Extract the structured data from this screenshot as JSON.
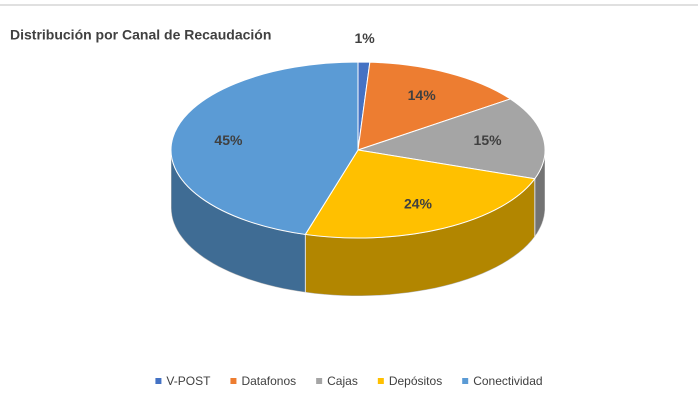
{
  "chart_data": {
    "type": "pie",
    "title": "Distribución por Canal de Recaudación",
    "categories": [
      "V-POST",
      "Datafonos",
      "Cajas",
      "Depósitos",
      "Conectividad"
    ],
    "values": [
      1,
      14,
      15,
      24,
      45
    ],
    "value_labels": [
      "1%",
      "14%",
      "15%",
      "24%",
      "45%"
    ],
    "colors": [
      "#4472c4",
      "#ed7d31",
      "#a5a5a5",
      "#ffc000",
      "#5b9bd5"
    ],
    "legend": "bottom"
  }
}
